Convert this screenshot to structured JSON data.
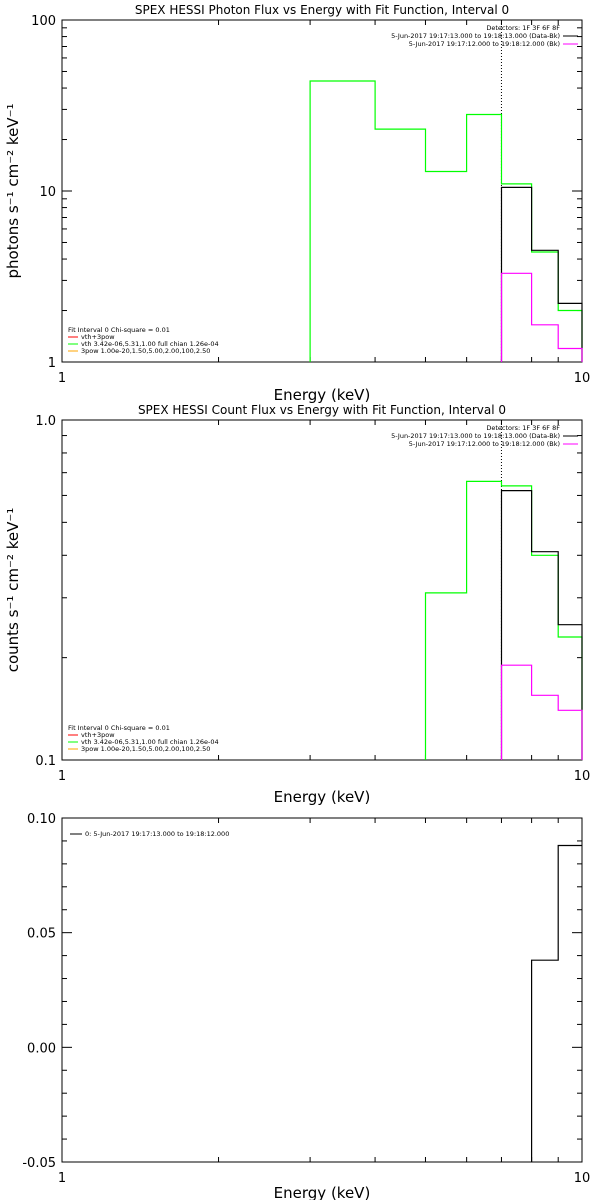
{
  "chart_data": [
    {
      "type": "line",
      "step": true,
      "title": "SPEX HESSI Photon Flux vs Energy with Fit Function, Interval 0",
      "xlabel": "Energy (keV)",
      "ylabel": "photons s⁻¹ cm⁻² keV⁻¹",
      "xscale": "log",
      "yscale": "log",
      "xlim": [
        1,
        10
      ],
      "ylim": [
        1,
        100
      ],
      "xticks": [
        {
          "value": 1,
          "label": "1"
        },
        {
          "value": 10,
          "label": "10"
        }
      ],
      "yticks": [
        {
          "value": 1,
          "label": "1"
        },
        {
          "value": 10,
          "label": "10"
        },
        {
          "value": 100,
          "label": "100"
        }
      ],
      "detectors_label": "Detectors: 1F 3F 6F 8F",
      "header_legend": [
        {
          "text": "5-Jun-2017 19:17:13.000 to 19:18:13.000 (Data-Bk)",
          "color": "#000000"
        },
        {
          "text": "5-Jun-2017 19:17:12.000 to 19:18:12.000 (Bk)",
          "color": "#ff00ff"
        }
      ],
      "fit_legend": {
        "header": "Fit Interval  0    Chi-square = 0.01",
        "entries": [
          {
            "text": "vth+3pow",
            "color": "#ff0000"
          },
          {
            "text": "vth 3.42e-06,5.31,1.00   full chian 1.26e-04",
            "color": "#00ff00"
          },
          {
            "text": "3pow 1.00e-20,1.50,5.00,2.00,100,2.50",
            "color": "#ffa500"
          }
        ]
      },
      "vline": {
        "x": 7.0,
        "style": "dotted"
      },
      "series": [
        {
          "color": "#00ff00",
          "edges": [
            3.0,
            4.0,
            5.0,
            6.0,
            7.0,
            8.0,
            9.0,
            10.0
          ],
          "values": [
            44,
            23,
            13,
            28,
            11,
            4.4,
            2.0
          ]
        },
        {
          "color": "#000000",
          "edges": [
            7.0,
            8.0,
            9.0,
            10.0
          ],
          "values": [
            10.5,
            4.5,
            2.2
          ]
        },
        {
          "color": "#ff00ff",
          "edges": [
            7.0,
            8.0,
            9.0,
            10.0
          ],
          "values": [
            3.3,
            1.65,
            1.2
          ]
        }
      ]
    },
    {
      "type": "line",
      "step": true,
      "title": "SPEX HESSI Count Flux vs Energy with Fit Function, Interval 0",
      "xlabel": "Energy (keV)",
      "ylabel": "counts s⁻¹ cm⁻² keV⁻¹",
      "xscale": "log",
      "yscale": "log",
      "xlim": [
        1,
        10
      ],
      "ylim": [
        0.1,
        1.0
      ],
      "xticks": [
        {
          "value": 1,
          "label": "1"
        },
        {
          "value": 10,
          "label": "10"
        }
      ],
      "yticks": [
        {
          "value": 0.1,
          "label": "0.1"
        },
        {
          "value": 1.0,
          "label": "1.0"
        }
      ],
      "detectors_label": "Detectors: 1F 3F 6F 8F",
      "header_legend": [
        {
          "text": "5-Jun-2017 19:17:13.000 to 19:18:13.000 (Data-Bk)",
          "color": "#000000"
        },
        {
          "text": "5-Jun-2017 19:17:12.000 to 19:18:12.000 (Bk)",
          "color": "#ff00ff"
        }
      ],
      "fit_legend": {
        "header": "Fit Interval  0    Chi-square = 0.01",
        "entries": [
          {
            "text": "vth+3pow",
            "color": "#ff0000"
          },
          {
            "text": "vth 3.42e-06,5.31,1.00   full chian 1.26e-04",
            "color": "#00ff00"
          },
          {
            "text": "3pow 1.00e-20,1.50,5.00,2.00,100,2.50",
            "color": "#ffa500"
          }
        ]
      },
      "vline": {
        "x": 7.0,
        "style": "dotted"
      },
      "series": [
        {
          "color": "#00ff00",
          "edges": [
            5.0,
            6.0,
            7.0,
            8.0,
            9.0,
            10.0
          ],
          "values": [
            0.31,
            0.66,
            0.64,
            0.4,
            0.23
          ]
        },
        {
          "color": "#000000",
          "edges": [
            7.0,
            8.0,
            9.0,
            10.0
          ],
          "values": [
            0.62,
            0.41,
            0.25
          ]
        },
        {
          "color": "#ff00ff",
          "edges": [
            7.0,
            8.0,
            9.0,
            10.0
          ],
          "values": [
            0.19,
            0.155,
            0.14
          ]
        }
      ]
    },
    {
      "type": "line",
      "step": true,
      "title": "",
      "xlabel": "Energy (keV)",
      "ylabel": "",
      "xscale": "log",
      "yscale": "linear",
      "xlim": [
        1,
        10
      ],
      "ylim": [
        -0.05,
        0.1
      ],
      "xticks": [
        {
          "value": 1,
          "label": "1"
        },
        {
          "value": 10,
          "label": "10"
        }
      ],
      "yticks": [
        {
          "value": -0.05,
          "label": "-0.05"
        },
        {
          "value": 0.0,
          "label": "0.00"
        },
        {
          "value": 0.05,
          "label": "0.05"
        },
        {
          "value": 0.1,
          "label": "0.10"
        }
      ],
      "legend": [
        {
          "text": "0:  5-Jun-2017 19:17:13.000 to 19:18:12.000",
          "color": "#000000"
        }
      ],
      "series": [
        {
          "color": "#000000",
          "edges": [
            8.0,
            9.0,
            10.0
          ],
          "values": [
            0.038,
            0.088
          ],
          "start_level": -0.05
        }
      ]
    }
  ]
}
